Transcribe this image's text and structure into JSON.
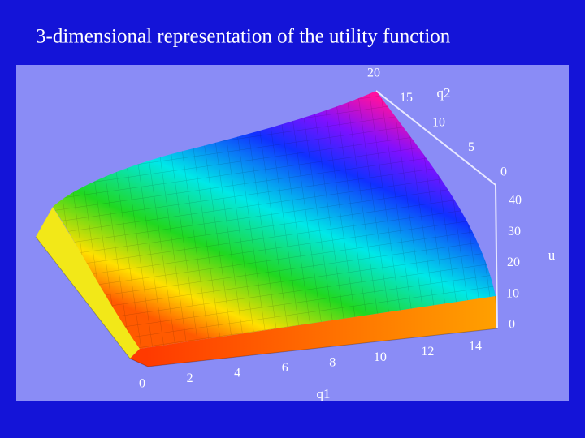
{
  "chart_data": {
    "type": "surface3d",
    "title": "3-dimensional representation of the utility function",
    "x_label": "q1",
    "y_label": "q2",
    "z_label": "u",
    "xlim": [
      0,
      14
    ],
    "xticks": [
      0,
      2,
      4,
      6,
      8,
      10,
      12,
      14
    ],
    "ylim": [
      0,
      20
    ],
    "yticks": [
      0,
      5,
      10,
      15,
      20
    ],
    "zlim": [
      0,
      40
    ],
    "zticks": [
      0,
      10,
      20,
      30,
      40
    ]
  }
}
